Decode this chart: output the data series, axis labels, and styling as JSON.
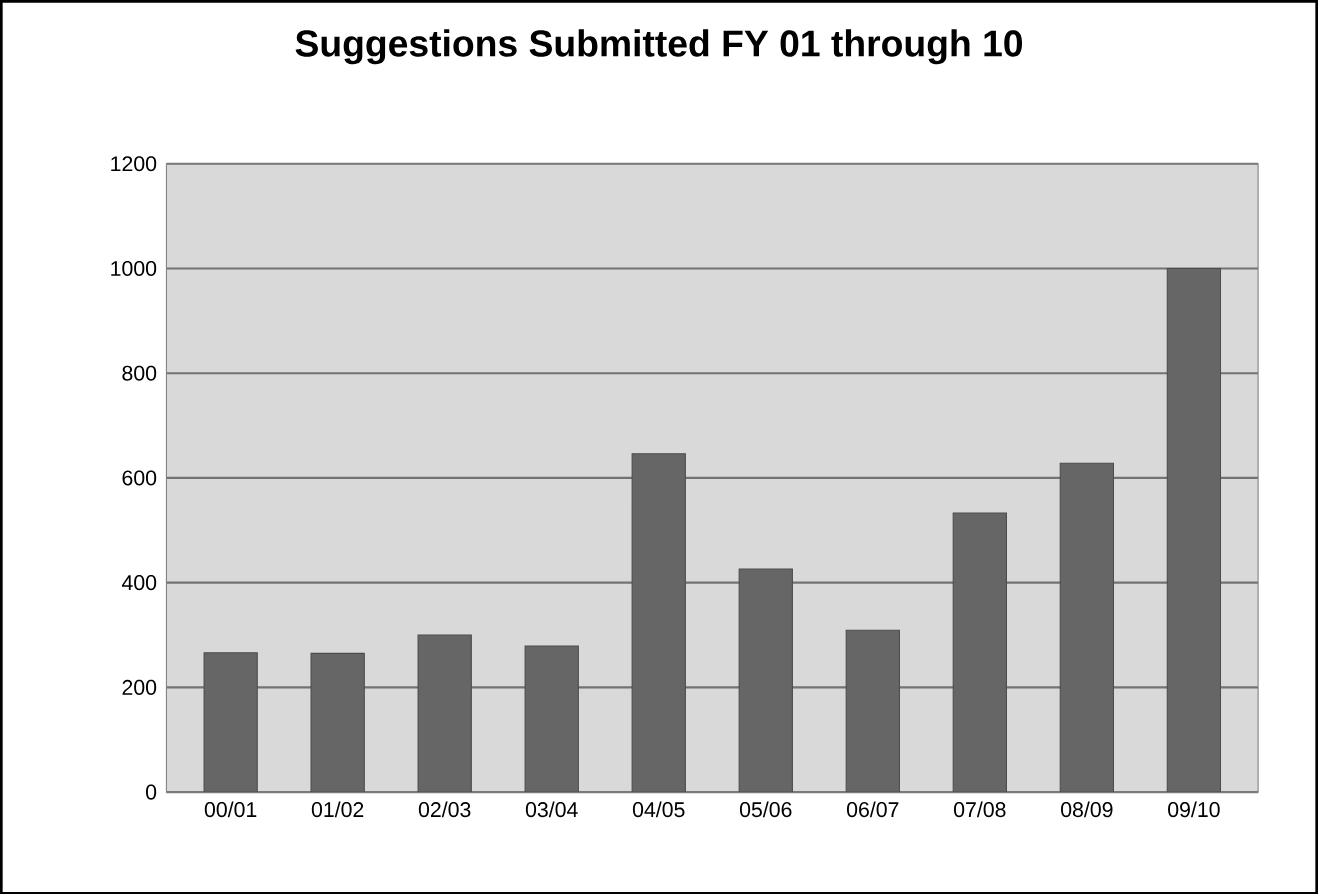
{
  "chart_data": {
    "type": "bar",
    "title": "Suggestions Submitted FY 01 through 10",
    "categories": [
      "00/01",
      "01/02",
      "02/03",
      "03/04",
      "04/05",
      "05/06",
      "06/07",
      "07/08",
      "08/09",
      "09/10"
    ],
    "values": [
      266,
      265,
      300,
      279,
      646,
      426,
      309,
      533,
      628,
      1000
    ],
    "color": "#666666",
    "ylim": [
      0,
      1200
    ],
    "yticks": [
      0,
      200,
      400,
      600,
      800,
      1000,
      1200
    ],
    "grid": "y"
  }
}
